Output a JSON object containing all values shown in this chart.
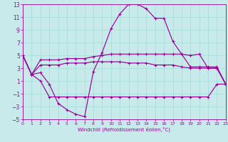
{
  "xlabel": "Windchill (Refroidissement éolien,°C)",
  "xlim": [
    0,
    23
  ],
  "ylim": [
    -5,
    13
  ],
  "yticks": [
    -5,
    -3,
    -1,
    1,
    3,
    5,
    7,
    9,
    11,
    13
  ],
  "xticks": [
    0,
    1,
    2,
    3,
    4,
    5,
    6,
    7,
    8,
    9,
    10,
    11,
    12,
    13,
    14,
    15,
    16,
    17,
    18,
    19,
    20,
    21,
    22,
    23
  ],
  "bg": "#c8eaea",
  "lc": "#990099",
  "gc": "#aadddd",
  "s1x": [
    0,
    1,
    2,
    3,
    4,
    5,
    6,
    7,
    8,
    9,
    10,
    11,
    12,
    13,
    14,
    15,
    16,
    17,
    18,
    19,
    20,
    21,
    22,
    23
  ],
  "s1y": [
    5.0,
    2.0,
    2.3,
    0.5,
    -2.5,
    -3.5,
    -4.2,
    -4.6,
    2.5,
    5.5,
    9.2,
    11.5,
    13.0,
    13.0,
    12.3,
    10.8,
    10.8,
    7.2,
    5.2,
    5.0,
    5.2,
    3.0,
    3.0,
    0.5
  ],
  "s2x": [
    0,
    1,
    2,
    3,
    4,
    5,
    6,
    7,
    8,
    9,
    10,
    11,
    12,
    13,
    14,
    15,
    16,
    17,
    18,
    19,
    20,
    21,
    22,
    23
  ],
  "s2y": [
    5.0,
    2.0,
    4.3,
    4.3,
    4.3,
    4.5,
    4.5,
    4.5,
    4.8,
    5.0,
    5.2,
    5.2,
    5.2,
    5.2,
    5.2,
    5.2,
    5.2,
    5.2,
    5.2,
    3.2,
    3.2,
    3.2,
    3.2,
    0.5
  ],
  "s3x": [
    0,
    1,
    2,
    3,
    4,
    5,
    6,
    7,
    8,
    9,
    10,
    11,
    12,
    13,
    14,
    15,
    16,
    17,
    18,
    19,
    20,
    21,
    22,
    23
  ],
  "s3y": [
    5.0,
    2.0,
    3.5,
    3.5,
    3.5,
    3.8,
    3.8,
    3.8,
    4.0,
    4.0,
    4.0,
    4.0,
    3.8,
    3.8,
    3.8,
    3.5,
    3.5,
    3.5,
    3.2,
    3.0,
    3.0,
    3.0,
    3.0,
    0.5
  ],
  "s4x": [
    0,
    1,
    2,
    3,
    4,
    5,
    6,
    7,
    8,
    9,
    10,
    11,
    12,
    13,
    14,
    15,
    16,
    17,
    18,
    19,
    20,
    21,
    22,
    23
  ],
  "s4y": [
    5.0,
    2.0,
    1.0,
    -1.5,
    -1.5,
    -1.5,
    -1.5,
    -1.5,
    -1.5,
    -1.5,
    -1.5,
    -1.5,
    -1.5,
    -1.5,
    -1.5,
    -1.5,
    -1.5,
    -1.5,
    -1.5,
    -1.5,
    -1.5,
    -1.5,
    0.5,
    0.5
  ]
}
